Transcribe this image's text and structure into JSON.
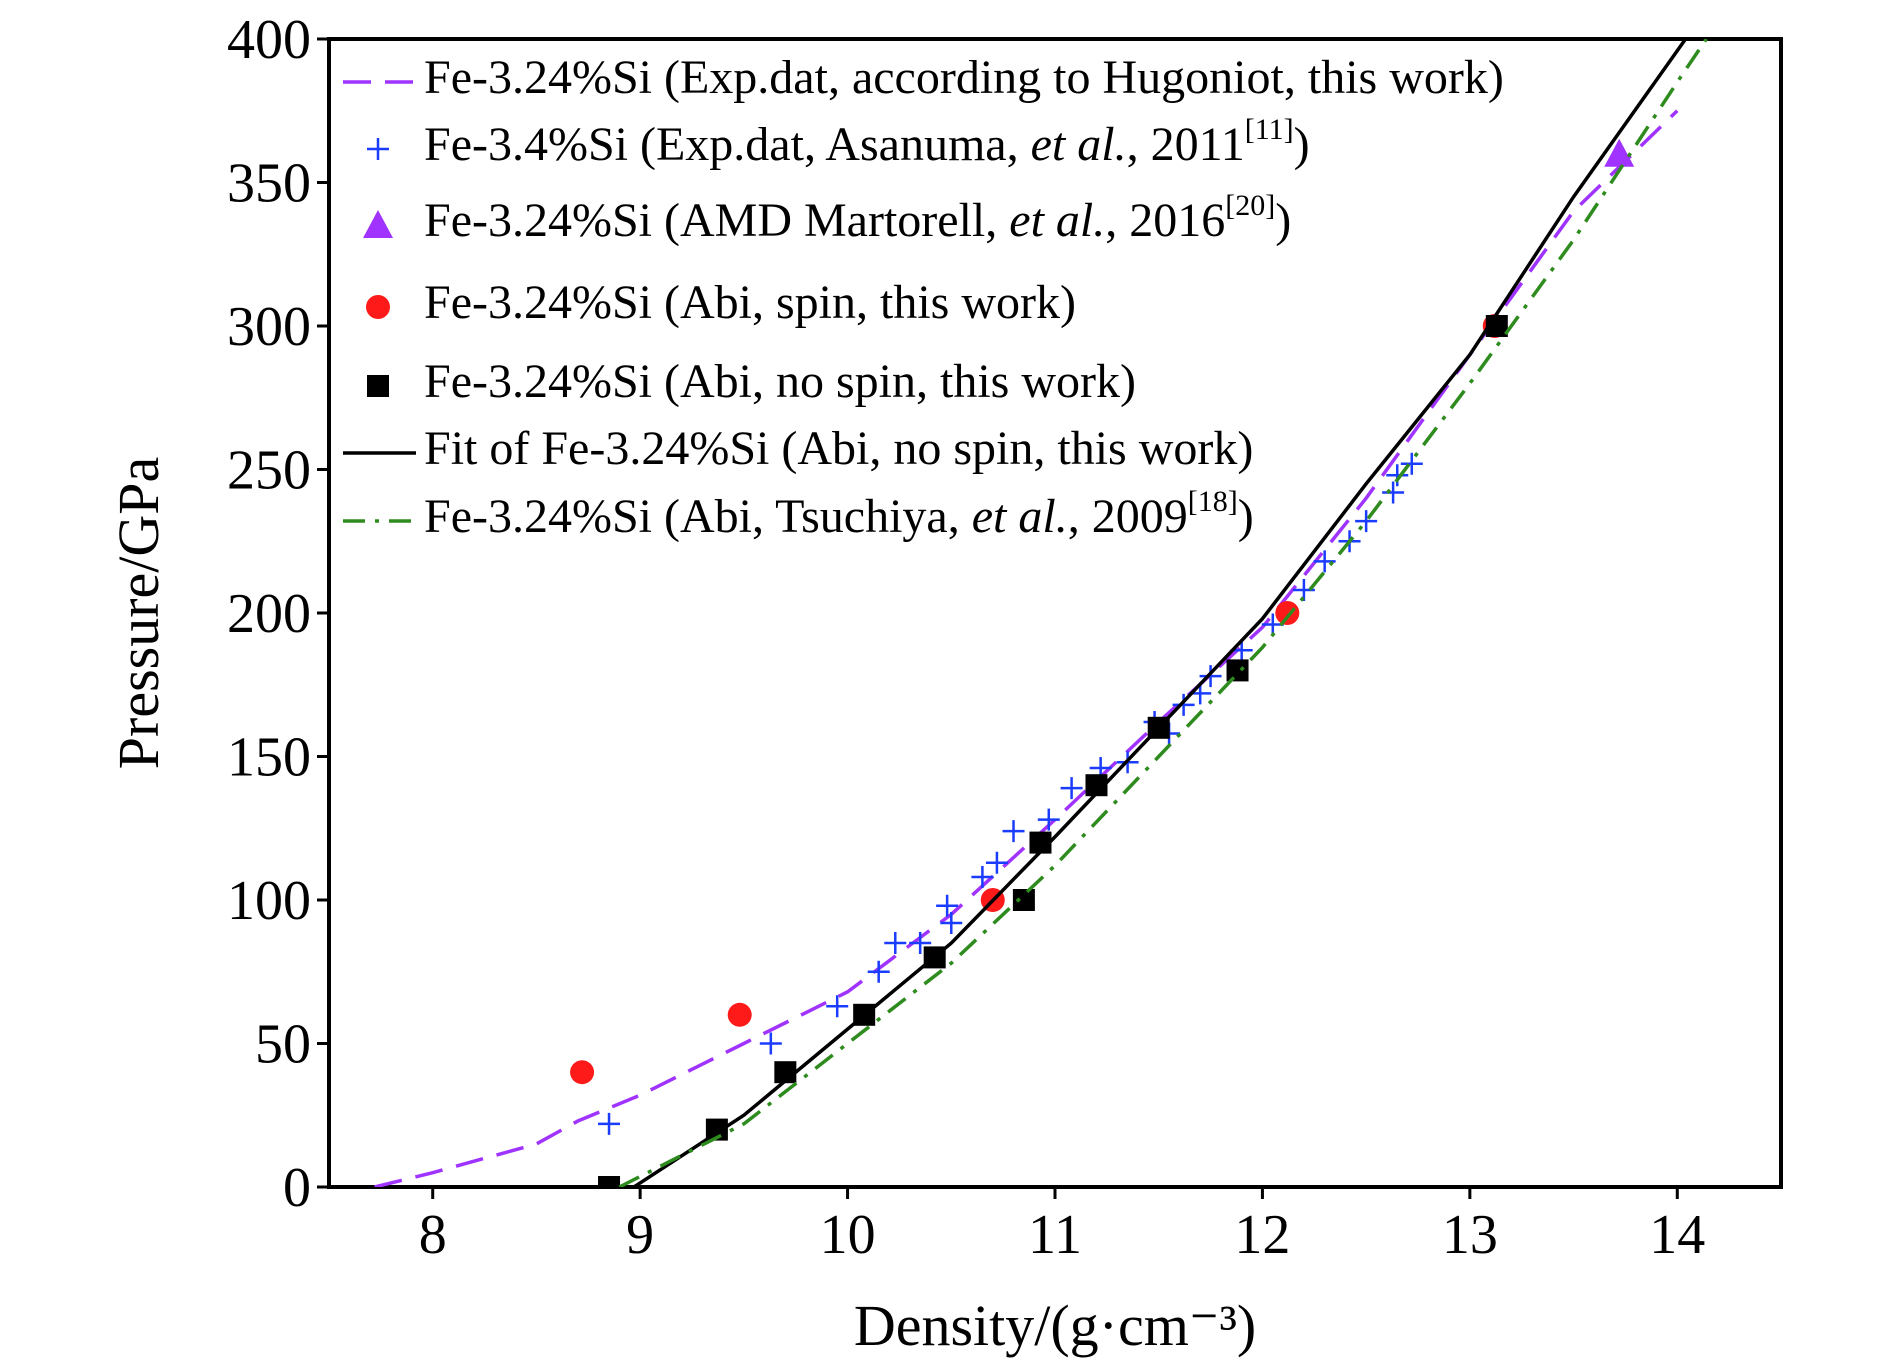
{
  "chart_data": {
    "type": "line",
    "x_label": "Density/(g·cm⁻³)",
    "y_label": "Pressure/GPa",
    "xlim": [
      7.5,
      14.5
    ],
    "xticks": [
      8,
      9,
      10,
      11,
      12,
      13,
      14
    ],
    "ylim": [
      0,
      400
    ],
    "yticks": [
      0,
      50,
      100,
      150,
      200,
      250,
      300,
      350,
      400
    ],
    "series": [
      {
        "name": "Fe-3.24%Si (Exp.dat, according to Hugoniot, this work)",
        "color": "#a033ff",
        "kind": "line",
        "dash": "dashed",
        "x": [
          7.72,
          8.0,
          8.5,
          8.7,
          9.0,
          9.5,
          10.0,
          10.5,
          11.0,
          11.5,
          12.0,
          12.5,
          13.0,
          13.5,
          14.0
        ],
        "values": [
          0,
          5,
          15,
          23,
          32,
          50,
          68,
          95,
          128,
          162,
          195,
          240,
          290,
          340,
          375
        ]
      },
      {
        "name": "Fe-3.4%Si (Exp.dat, Asanuma, et al., 2011[11])",
        "color": "#1a3cff",
        "kind": "scatter",
        "marker": "plus",
        "x": [
          8.85,
          9.63,
          9.95,
          10.15,
          10.23,
          10.35,
          10.48,
          10.5,
          10.65,
          10.72,
          10.8,
          10.97,
          11.08,
          11.22,
          11.35,
          11.48,
          11.55,
          11.62,
          11.7,
          11.75,
          11.9,
          12.05,
          12.2,
          12.3,
          12.42,
          12.5,
          12.63,
          12.65,
          12.72
        ],
        "values": [
          22,
          50,
          63,
          75,
          85,
          85,
          98,
          92,
          108,
          113,
          124,
          128,
          139,
          146,
          148,
          162,
          158,
          168,
          172,
          178,
          187,
          196,
          208,
          218,
          225,
          232,
          242,
          248,
          252
        ]
      },
      {
        "name": "Fe-3.24%Si (AMD Martorell, et al., 2016[20])",
        "color": "#a033ff",
        "kind": "scatter",
        "marker": "triangle",
        "x": [
          13.72
        ],
        "values": [
          360
        ]
      },
      {
        "name": "Fe-3.24%Si (Abi, spin, this work)",
        "color": "#ff1a1a",
        "kind": "scatter",
        "marker": "circle",
        "x": [
          8.72,
          9.48,
          10.7,
          12.12,
          13.12
        ],
        "values": [
          40,
          60,
          100,
          200,
          300
        ]
      },
      {
        "name": "Fe-3.24%Si (Abi, no spin, this work)",
        "color": "#000000",
        "kind": "scatter",
        "marker": "square",
        "x": [
          8.85,
          9.37,
          9.7,
          10.08,
          10.42,
          10.85,
          10.93,
          11.2,
          11.5,
          11.88,
          13.13
        ],
        "values": [
          0,
          20,
          40,
          60,
          80,
          100,
          120,
          140,
          160,
          180,
          300
        ]
      },
      {
        "name": "Fit of Fe-3.24%Si (Abi, no spin, this work)",
        "color": "#000000",
        "kind": "line",
        "dash": "solid",
        "x": [
          8.97,
          9.5,
          10.0,
          10.5,
          11.0,
          11.5,
          12.0,
          12.5,
          13.0,
          13.5,
          14.04
        ],
        "values": [
          0,
          25,
          55,
          85,
          122,
          160,
          198,
          245,
          290,
          345,
          400
        ]
      },
      {
        "name": "Fe-3.24%Si (Abi, Tsuchiya, et al., 2009[18])",
        "color": "#2e8b1e",
        "kind": "line",
        "dash": "dashdot",
        "x": [
          8.9,
          9.5,
          10.0,
          10.5,
          11.0,
          11.5,
          12.0,
          12.5,
          13.0,
          13.5,
          14.0,
          14.14
        ],
        "values": [
          0,
          22,
          50,
          78,
          112,
          150,
          188,
          232,
          280,
          330,
          385,
          400
        ]
      }
    ]
  }
}
